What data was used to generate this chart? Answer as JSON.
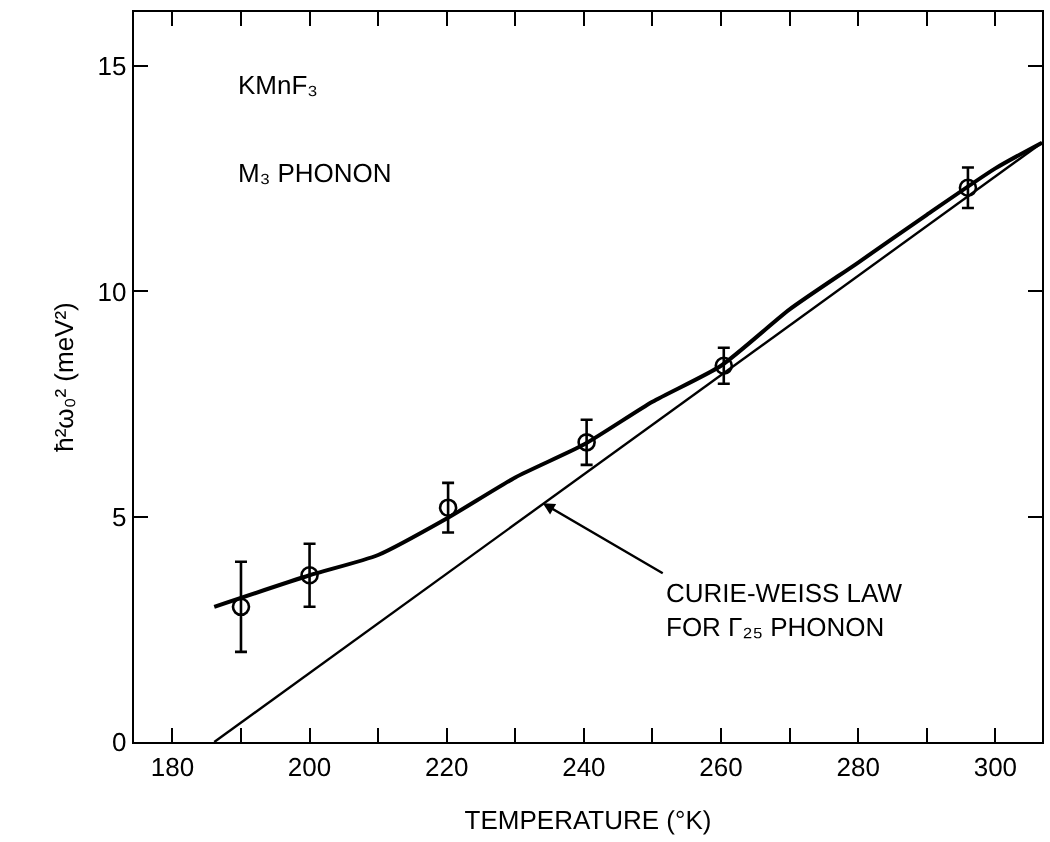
{
  "chart_data": {
    "type": "scatter",
    "xlabel": "TEMPERATURE (°K)",
    "ylabel": "ħ²ω₀² (meV²)",
    "xlim": [
      174.4,
      306.8
    ],
    "ylim": [
      0,
      16.2
    ],
    "xticks": [
      180,
      {
        "value": 190,
        "label": null
      },
      200,
      {
        "value": 210,
        "label": null
      },
      220,
      {
        "value": 230,
        "label": null
      },
      240,
      {
        "value": 250,
        "label": null
      },
      260,
      {
        "value": 270,
        "label": null
      },
      280,
      {
        "value": 290,
        "label": null
      },
      300
    ],
    "yticks": [
      0,
      5,
      10,
      15
    ],
    "series": [
      {
        "color": "#000000",
        "marker": "circle",
        "x": [
          190,
          200,
          220.2,
          240.4,
          260.4,
          296
        ],
        "values": [
          3.0,
          3.7,
          5.2,
          6.65,
          8.35,
          12.3
        ],
        "errors": [
          1.0,
          0.7,
          0.55,
          0.5,
          0.4,
          0.45
        ]
      },
      {
        "type": "line",
        "color": "#000000",
        "line_style": "solid",
        "x": [
          186.1,
          200,
          210,
          220,
          230,
          240,
          250,
          260,
          270,
          280,
          290,
          300,
          306.8
        ],
        "values": [
          3.0,
          3.7,
          4.15,
          4.96,
          5.87,
          6.6,
          7.55,
          8.35,
          9.6,
          10.64,
          11.7,
          12.73,
          13.3
        ]
      },
      {
        "type": "line",
        "color": "#000000",
        "line_style": "solid",
        "x": [
          186.1,
          306.8
        ],
        "values": [
          0,
          13.3
        ]
      }
    ],
    "annotations": [
      "KMnF₃",
      "M₃ PHONON",
      {
        "text": "CURIE-WEISS LAW\nFOR Γ₂₅ PHONON",
        "x": 234,
        "y": 5.3
      }
    ]
  }
}
